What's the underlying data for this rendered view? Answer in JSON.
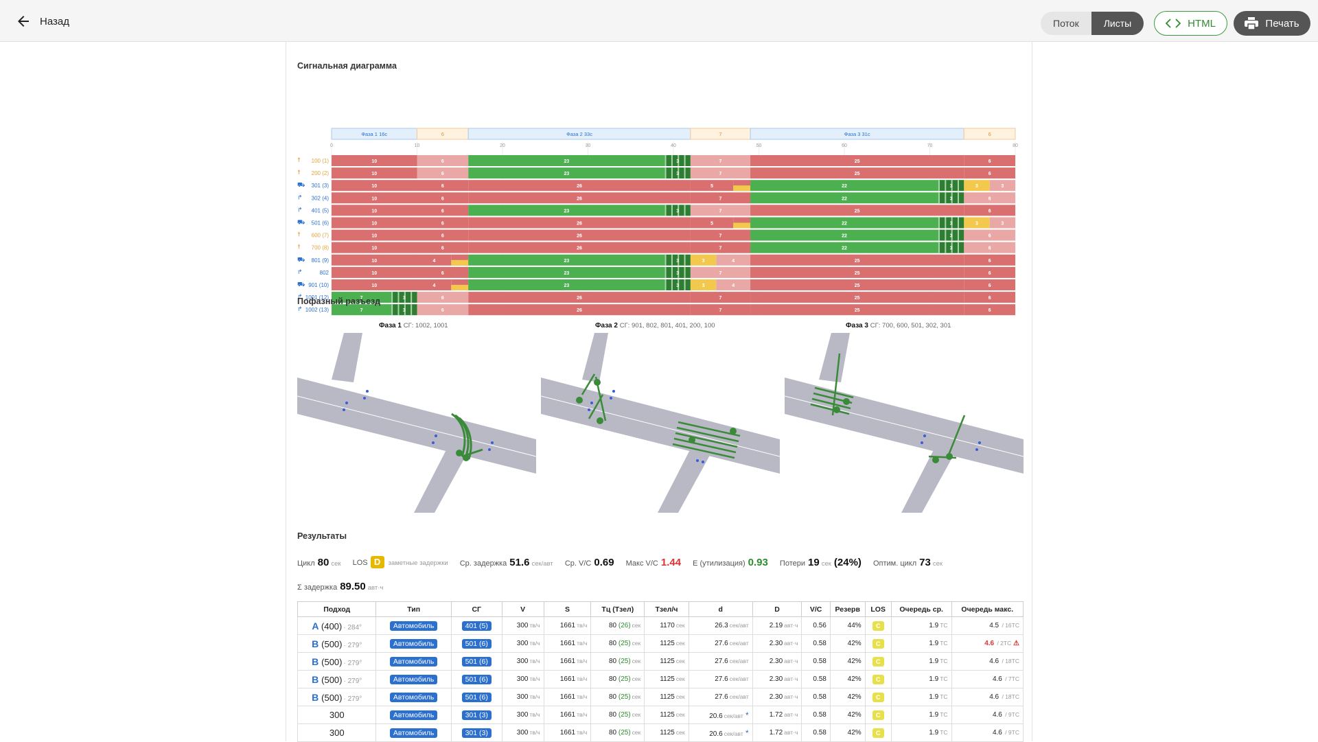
{
  "topbar": {
    "back_label": "Назад",
    "view_flow": "Поток",
    "view_sheets": "Листы",
    "html_label": "HTML",
    "print_label": "Печать"
  },
  "sections": {
    "signal": "Сигнальная диаграмма",
    "phases": "Пофазный разъезд",
    "results": "Результаты"
  },
  "signal_diagram": {
    "cycle": 80,
    "axis_ticks": [
      "0",
      "10",
      "20",
      "30",
      "40",
      "50",
      "60",
      "70",
      "80"
    ],
    "phase_header": [
      {
        "label": "Фаза 1",
        "dur": "16с",
        "start": 0,
        "end": 10
      },
      {
        "label": "",
        "dur": "6",
        "start": 10,
        "end": 16
      },
      {
        "label": "Фаза 2",
        "dur": "33с",
        "start": 16,
        "end": 42
      },
      {
        "label": "",
        "dur": "7",
        "start": 42,
        "end": 49
      },
      {
        "label": "Фаза 3",
        "dur": "31с",
        "start": 49,
        "end": 74
      },
      {
        "label": "",
        "dur": "6",
        "start": 74,
        "end": 80
      }
    ],
    "rows": [
      {
        "icon": "ped",
        "label": "100 (1)",
        "color": "#e5a23c",
        "segs": [
          [
            "r",
            0,
            10,
            "10"
          ],
          [
            "p",
            10,
            16,
            "6"
          ],
          [
            "g",
            16,
            39,
            "23"
          ],
          [
            "f",
            39,
            42,
            "3"
          ],
          [
            "p",
            42,
            49,
            "7"
          ],
          [
            "r",
            49,
            74,
            "25"
          ],
          [
            "r",
            74,
            80,
            "6"
          ]
        ]
      },
      {
        "icon": "ped",
        "label": "200 (2)",
        "color": "#e5a23c",
        "segs": [
          [
            "r",
            0,
            10,
            "10"
          ],
          [
            "p",
            10,
            16,
            "6"
          ],
          [
            "g",
            16,
            39,
            "23"
          ],
          [
            "f",
            39,
            42,
            "3"
          ],
          [
            "p",
            42,
            49,
            "7"
          ],
          [
            "r",
            49,
            74,
            "25"
          ],
          [
            "r",
            74,
            80,
            "6"
          ]
        ]
      },
      {
        "icon": "car",
        "label": "301 (3)",
        "color": "#2b6fcf",
        "segs": [
          [
            "r",
            0,
            10,
            "10"
          ],
          [
            "r",
            10,
            16,
            "6"
          ],
          [
            "r",
            16,
            42,
            "26"
          ],
          [
            "r",
            42,
            47,
            "5"
          ],
          [
            "ry",
            47,
            49,
            ""
          ],
          [
            "g",
            49,
            71,
            "22"
          ],
          [
            "f",
            71,
            74,
            "3"
          ],
          [
            "y",
            74,
            77,
            "3"
          ],
          [
            "p",
            77,
            80,
            "3"
          ]
        ]
      },
      {
        "icon": "turn",
        "label": "302 (4)",
        "color": "#2b6fcf",
        "segs": [
          [
            "r",
            0,
            10,
            "10"
          ],
          [
            "r",
            10,
            16,
            "6"
          ],
          [
            "r",
            16,
            42,
            "26"
          ],
          [
            "r",
            42,
            49,
            "7"
          ],
          [
            "g",
            49,
            71,
            "22"
          ],
          [
            "f",
            71,
            74,
            "3"
          ],
          [
            "p",
            74,
            80,
            "6"
          ]
        ]
      },
      {
        "icon": "turn",
        "label": "401 (5)",
        "color": "#2b6fcf",
        "segs": [
          [
            "r",
            0,
            10,
            "10"
          ],
          [
            "r",
            10,
            16,
            "6"
          ],
          [
            "g",
            16,
            39,
            "23"
          ],
          [
            "f",
            39,
            42,
            "3"
          ],
          [
            "p",
            42,
            49,
            "7"
          ],
          [
            "r",
            49,
            74,
            "25"
          ],
          [
            "r",
            74,
            80,
            "6"
          ]
        ]
      },
      {
        "icon": "car",
        "label": "501 (6)",
        "color": "#2b6fcf",
        "segs": [
          [
            "r",
            0,
            10,
            "10"
          ],
          [
            "r",
            10,
            16,
            "6"
          ],
          [
            "r",
            16,
            42,
            "26"
          ],
          [
            "r",
            42,
            47,
            "5"
          ],
          [
            "ry",
            47,
            49,
            ""
          ],
          [
            "g",
            49,
            71,
            "22"
          ],
          [
            "f",
            71,
            74,
            "3"
          ],
          [
            "y",
            74,
            77,
            "3"
          ],
          [
            "p",
            77,
            80,
            "3"
          ]
        ]
      },
      {
        "icon": "ped",
        "label": "600 (7)",
        "color": "#e5a23c",
        "segs": [
          [
            "r",
            0,
            10,
            "10"
          ],
          [
            "r",
            10,
            16,
            "6"
          ],
          [
            "r",
            16,
            42,
            "26"
          ],
          [
            "r",
            42,
            49,
            "7"
          ],
          [
            "g",
            49,
            71,
            "22"
          ],
          [
            "f",
            71,
            74,
            "3"
          ],
          [
            "p",
            74,
            80,
            "6"
          ]
        ]
      },
      {
        "icon": "ped",
        "label": "700 (8)",
        "color": "#e5a23c",
        "segs": [
          [
            "r",
            0,
            10,
            "10"
          ],
          [
            "r",
            10,
            16,
            "6"
          ],
          [
            "r",
            16,
            42,
            "26"
          ],
          [
            "r",
            42,
            49,
            "7"
          ],
          [
            "g",
            49,
            71,
            "22"
          ],
          [
            "f",
            71,
            74,
            "3"
          ],
          [
            "p",
            74,
            80,
            "6"
          ]
        ]
      },
      {
        "icon": "car",
        "label": "801 (9)",
        "color": "#2b6fcf",
        "segs": [
          [
            "r",
            0,
            10,
            "10"
          ],
          [
            "r",
            10,
            14,
            "4"
          ],
          [
            "ry",
            14,
            16,
            ""
          ],
          [
            "g",
            16,
            39,
            "23"
          ],
          [
            "f",
            39,
            42,
            "3"
          ],
          [
            "y",
            42,
            45,
            "3"
          ],
          [
            "p",
            45,
            49,
            "4"
          ],
          [
            "r",
            49,
            74,
            "25"
          ],
          [
            "r",
            74,
            80,
            "6"
          ]
        ]
      },
      {
        "icon": "turn",
        "label": "802",
        "color": "#2b6fcf",
        "segs": [
          [
            "r",
            0,
            10,
            "10"
          ],
          [
            "r",
            10,
            16,
            "6"
          ],
          [
            "g",
            16,
            39,
            "23"
          ],
          [
            "f",
            39,
            42,
            "3"
          ],
          [
            "p",
            42,
            49,
            "7"
          ],
          [
            "r",
            49,
            74,
            "25"
          ],
          [
            "r",
            74,
            80,
            "6"
          ]
        ]
      },
      {
        "icon": "car",
        "label": "901 (10)",
        "color": "#2b6fcf",
        "segs": [
          [
            "r",
            0,
            10,
            "10"
          ],
          [
            "r",
            10,
            14,
            "4"
          ],
          [
            "ry",
            14,
            16,
            ""
          ],
          [
            "g",
            16,
            39,
            "23"
          ],
          [
            "f",
            39,
            42,
            "3"
          ],
          [
            "y",
            42,
            45,
            "3"
          ],
          [
            "p",
            45,
            49,
            "4"
          ],
          [
            "r",
            49,
            74,
            "25"
          ],
          [
            "r",
            74,
            80,
            "6"
          ]
        ]
      },
      {
        "icon": "turn",
        "label": "1001 (12)",
        "color": "#2b6fcf",
        "segs": [
          [
            "g",
            0,
            7,
            "7"
          ],
          [
            "f",
            7,
            10,
            "3"
          ],
          [
            "p",
            10,
            16,
            "6"
          ],
          [
            "r",
            16,
            42,
            "26"
          ],
          [
            "r",
            42,
            49,
            "7"
          ],
          [
            "r",
            49,
            74,
            "25"
          ],
          [
            "r",
            74,
            80,
            "6"
          ]
        ]
      },
      {
        "icon": "turn",
        "label": "1002 (13)",
        "color": "#2b6fcf",
        "segs": [
          [
            "g",
            0,
            7,
            "7"
          ],
          [
            "f",
            7,
            10,
            "3"
          ],
          [
            "p",
            10,
            16,
            "6"
          ],
          [
            "r",
            16,
            42,
            "26"
          ],
          [
            "r",
            42,
            49,
            "7"
          ],
          [
            "r",
            49,
            74,
            "25"
          ],
          [
            "r",
            74,
            80,
            "6"
          ]
        ]
      }
    ]
  },
  "phases": [
    {
      "title": "Фаза 1",
      "sg": "СГ: 1002, 1001"
    },
    {
      "title": "Фаза 2",
      "sg": "СГ: 901, 802, 801, 401, 200, 100"
    },
    {
      "title": "Фаза 3",
      "sg": "СГ: 700, 600, 501, 302, 301"
    }
  ],
  "metrics": {
    "cycle_label": "Цикл",
    "cycle_value": "80",
    "cycle_unit": "сек",
    "los_label": "LOS",
    "los_value": "D",
    "los_desc": "заметные задержки",
    "avg_delay_label": "Ср. задержка",
    "avg_delay_value": "51.6",
    "avg_delay_unit": "сек/авт",
    "avg_vc_label": "Ср. V/C",
    "avg_vc_value": "0.69",
    "max_vc_label": "Макс V/C",
    "max_vc_value": "1.44",
    "util_label": "E (утилизация)",
    "util_value": "0.93",
    "loss_label": "Потери",
    "loss_value": "19",
    "loss_unit": "сек",
    "loss_pct": "(24%)",
    "opt_cycle_label": "Оптим. цикл",
    "opt_cycle_value": "73",
    "opt_cycle_unit": "сек",
    "sum_delay_label": "Σ задержка",
    "sum_delay_value": "89.50",
    "sum_delay_unit": "авт·ч"
  },
  "table": {
    "headers": [
      "Подход",
      "Тип",
      "СГ",
      "V",
      "S",
      "Тц (Тзел)",
      "Тзел/ч",
      "d",
      "D",
      "V/C",
      "Резерв",
      "LOS",
      "Очередь ср.",
      "Очередь макс."
    ],
    "rows": [
      {
        "letter": "A",
        "num": "(400)",
        "deg": "· 284°",
        "type": "Автомобиль",
        "sg": "401 (5)",
        "v": "300",
        "s": "1661",
        "tc": "80",
        "tg": "(26)",
        "tgh": "1170",
        "d": "26.3",
        "D": "2.19",
        "vc": "0.56",
        "res": "44%",
        "los": "C",
        "qa": "1.9",
        "qm": "4.5",
        "qmax": "/ 16ТС",
        "warn": "",
        "star": ""
      },
      {
        "letter": "B",
        "num": "(500)",
        "deg": "· 279°",
        "type": "Автомобиль",
        "sg": "501 (6)",
        "v": "300",
        "s": "1661",
        "tc": "80",
        "tg": "(25)",
        "tgh": "1125",
        "d": "27.6",
        "D": "2.30",
        "vc": "0.58",
        "res": "42%",
        "los": "C",
        "qa": "1.9",
        "qm": "4.6",
        "qmax": "/ 2ТС",
        "warn": "⚠",
        "star": ""
      },
      {
        "letter": "B",
        "num": "(500)",
        "deg": "· 279°",
        "type": "Автомобиль",
        "sg": "501 (6)",
        "v": "300",
        "s": "1661",
        "tc": "80",
        "tg": "(25)",
        "tgh": "1125",
        "d": "27.6",
        "D": "2.30",
        "vc": "0.58",
        "res": "42%",
        "los": "C",
        "qa": "1.9",
        "qm": "4.6",
        "qmax": "/ 18ТС",
        "warn": "",
        "star": ""
      },
      {
        "letter": "B",
        "num": "(500)",
        "deg": "· 279°",
        "type": "Автомобиль",
        "sg": "501 (6)",
        "v": "300",
        "s": "1661",
        "tc": "80",
        "tg": "(25)",
        "tgh": "1125",
        "d": "27.6",
        "D": "2.30",
        "vc": "0.58",
        "res": "42%",
        "los": "C",
        "qa": "1.9",
        "qm": "4.6",
        "qmax": "/ 7ТС",
        "warn": "",
        "star": ""
      },
      {
        "letter": "B",
        "num": "(500)",
        "deg": "· 279°",
        "type": "Автомобиль",
        "sg": "501 (6)",
        "v": "300",
        "s": "1661",
        "tc": "80",
        "tg": "(25)",
        "tgh": "1125",
        "d": "27.6",
        "D": "2.30",
        "vc": "0.58",
        "res": "42%",
        "los": "C",
        "qa": "1.9",
        "qm": "4.6",
        "qmax": "/ 18ТС",
        "warn": "",
        "star": ""
      },
      {
        "letter": "",
        "num": "300",
        "deg": "",
        "type": "Автомобиль",
        "sg": "301 (3)",
        "v": "300",
        "s": "1661",
        "tc": "80",
        "tg": "(25)",
        "tgh": "1125",
        "d": "20.6",
        "D": "1.72",
        "vc": "0.58",
        "res": "42%",
        "los": "C",
        "qa": "1.9",
        "qm": "4.6",
        "qmax": "/ 9ТС",
        "warn": "",
        "star": "*"
      },
      {
        "letter": "",
        "num": "300",
        "deg": "",
        "type": "Автомобиль",
        "sg": "301 (3)",
        "v": "300",
        "s": "1661",
        "tc": "80",
        "tg": "(25)",
        "tgh": "1125",
        "d": "20.6",
        "D": "1.72",
        "vc": "0.58",
        "res": "42%",
        "los": "C",
        "qa": "1.9",
        "qm": "4.6",
        "qmax": "/ 9ТС",
        "warn": "",
        "star": "*"
      }
    ],
    "units": {
      "v": "тв/ч",
      "s": "тв/ч",
      "sec": "сек",
      "d": "сек/авт",
      "D": "авт·ч",
      "q": "ТС"
    }
  },
  "colors": {
    "red": "#d9706f",
    "pink": "#e9a8a6",
    "green": "#4caf50",
    "darkgreen": "#2e7d32",
    "yellow": "#f2c94c",
    "blue": "#2b6fcf",
    "accent": "#3a9a3a"
  }
}
